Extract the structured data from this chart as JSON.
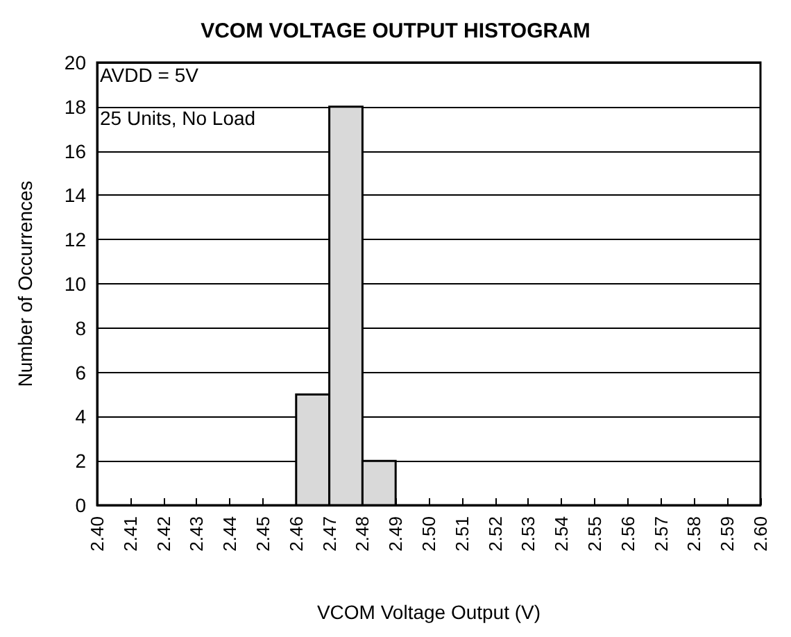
{
  "chart_data": {
    "type": "histogram",
    "title": "VCOM VOLTAGE OUTPUT HISTOGRAM",
    "xlabel": "VCOM Voltage Output (V)",
    "ylabel": "Number of Occurrences",
    "annotations": [
      "AVDD = 5V",
      "25 Units, No Load"
    ],
    "bins": [
      2.4,
      2.41,
      2.42,
      2.43,
      2.44,
      2.45,
      2.46,
      2.47,
      2.48,
      2.49,
      2.5,
      2.51,
      2.52,
      2.53,
      2.54,
      2.55,
      2.56,
      2.57,
      2.58,
      2.59,
      2.6
    ],
    "values": [
      0,
      0,
      0,
      0,
      0,
      0,
      5,
      18,
      2,
      0,
      0,
      0,
      0,
      0,
      0,
      0,
      0,
      0,
      0,
      0
    ],
    "color": "#d9d9d9",
    "xlim": [
      2.4,
      2.6
    ],
    "xticks": [
      {
        "value": 2.4,
        "label": "2.40"
      },
      {
        "value": 2.41,
        "label": "2.41"
      },
      {
        "value": 2.42,
        "label": "2.42"
      },
      {
        "value": 2.43,
        "label": "2.43"
      },
      {
        "value": 2.44,
        "label": "2.44"
      },
      {
        "value": 2.45,
        "label": "2.45"
      },
      {
        "value": 2.46,
        "label": "2.46"
      },
      {
        "value": 2.47,
        "label": "2.47"
      },
      {
        "value": 2.48,
        "label": "2.48"
      },
      {
        "value": 2.49,
        "label": "2.49"
      },
      {
        "value": 2.5,
        "label": "2.50"
      },
      {
        "value": 2.51,
        "label": "2.51"
      },
      {
        "value": 2.52,
        "label": "2.52"
      },
      {
        "value": 2.53,
        "label": "2.53"
      },
      {
        "value": 2.54,
        "label": "2.54"
      },
      {
        "value": 2.55,
        "label": "2.55"
      },
      {
        "value": 2.56,
        "label": "2.56"
      },
      {
        "value": 2.57,
        "label": "2.57"
      },
      {
        "value": 2.58,
        "label": "2.58"
      },
      {
        "value": 2.59,
        "label": "2.59"
      },
      {
        "value": 2.6,
        "label": "2.60"
      }
    ],
    "ylim": [
      0,
      20
    ],
    "yticks": [
      0,
      2,
      4,
      6,
      8,
      10,
      12,
      14,
      16,
      18,
      20
    ],
    "grid": "y"
  }
}
